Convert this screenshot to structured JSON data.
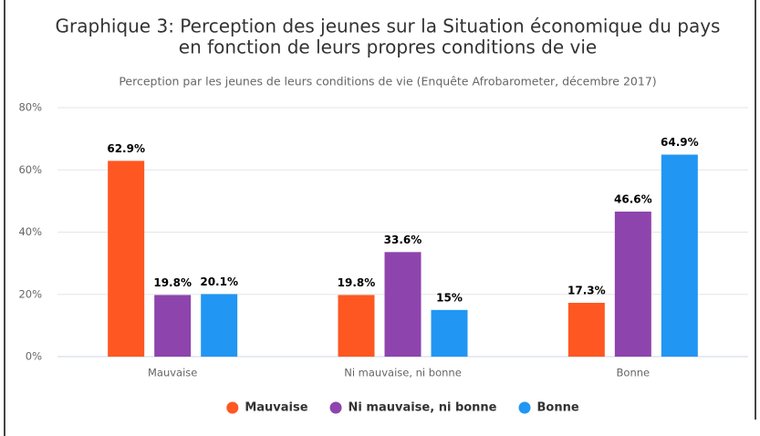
{
  "chart_data": {
    "type": "bar",
    "title": [
      "Graphique 3: Perception des jeunes sur la Situation économique du pays",
      "en fonction de leurs propres conditions de vie"
    ],
    "subtitle": "Perception par les jeunes de leurs conditions de vie (Enquête Afrobarometer, décembre 2017)",
    "categories": [
      "Mauvaise",
      "Ni mauvaise, ni bonne",
      "Bonne"
    ],
    "series": [
      {
        "name": "Mauvaise",
        "color": "#fe5722",
        "values": [
          62.9,
          19.8,
          17.3
        ],
        "value_labels": [
          "62.9%",
          "19.8%",
          "17.3%"
        ]
      },
      {
        "name": "Ni mauvaise, ni bonne",
        "color": "#8e44ad",
        "values": [
          19.8,
          33.6,
          46.6
        ],
        "value_labels": [
          "19.8%",
          "33.6%",
          "46.6%"
        ]
      },
      {
        "name": "Bonne",
        "color": "#2196f3",
        "values": [
          20.1,
          15,
          64.9
        ],
        "value_labels": [
          "20.1%",
          "15%",
          "64.9%"
        ]
      }
    ],
    "ylim": [
      0,
      80
    ],
    "yticks": [
      {
        "value": 0,
        "label": "0%"
      },
      {
        "value": 20,
        "label": "20%"
      },
      {
        "value": 40,
        "label": "40%"
      },
      {
        "value": 60,
        "label": "60%"
      },
      {
        "value": 80,
        "label": "80%"
      }
    ],
    "grid": true,
    "legend": "bottom"
  }
}
